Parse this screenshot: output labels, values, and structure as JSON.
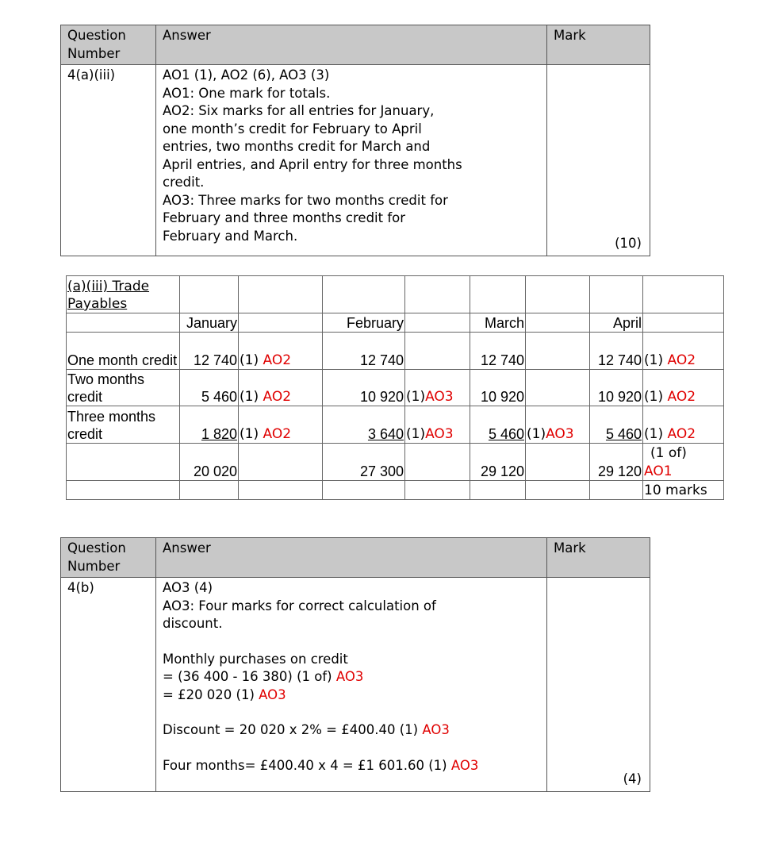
{
  "headers": {
    "question": "Question Number",
    "answer": "Answer",
    "mark": "Mark"
  },
  "q1": {
    "number": "4(a)(iii)",
    "lines": [
      "AO1 (1), AO2 (6), AO3 (3)",
      "AO1: One mark for totals.",
      "AO2: Six marks for all entries for January,",
      "one month’s credit for February to April",
      "entries, two months credit for March and",
      "April entries, and April entry for three months",
      "credit.",
      "AO3: Three marks for two months credit for",
      "February and three months credit for",
      "February and March."
    ],
    "mark": "(10)"
  },
  "tp": {
    "title": "(a)(iii) Trade Payables",
    "months": [
      "January",
      "February",
      "March",
      "April"
    ],
    "rows": [
      {
        "label": "One month credit",
        "cells": [
          [
            "12 740",
            "(1) ",
            "AO2"
          ],
          [
            "12 740",
            "",
            ""
          ],
          [
            "12 740",
            "",
            ""
          ],
          [
            "12 740",
            "(1) ",
            "AO2"
          ]
        ]
      },
      {
        "label": "Two months credit",
        "cells": [
          [
            "5 460",
            "(1) ",
            "AO2"
          ],
          [
            "10 920",
            "(1)",
            "AO3"
          ],
          [
            "10 920",
            "",
            ""
          ],
          [
            "10 920",
            "(1) ",
            "AO2"
          ]
        ]
      },
      {
        "label": "Three months credit",
        "cells": [
          [
            "1 820",
            "(1) ",
            "AO2"
          ],
          [
            "3 640",
            "(1)",
            "AO3"
          ],
          [
            "5 460",
            "(1)",
            "AO3"
          ],
          [
            "5 460",
            "(1) ",
            "AO2"
          ]
        ]
      }
    ],
    "totals": [
      "20 020",
      "27 300",
      "29 120",
      "29 120"
    ],
    "total_note": "(1 of)",
    "total_ao": "AO1",
    "marks": "10 marks"
  },
  "q2": {
    "number": "4(b)",
    "l1": "AO3 (4)",
    "l2": "AO3: Four marks for correct calculation of",
    "l3": "discount.",
    "l4": "Monthly purchases on credit",
    "l5": "=  (36 400  -  16 380) (1 of) ",
    "l6": "= £20 020 (1) ",
    "l7": "Discount =  20 020  x   2%   =   £400.40 (1) ",
    "l8": "Four months= £400.40 x  4 =  £1 601.60 (1) ",
    "ao": "AO3",
    "mark": "(4)"
  }
}
